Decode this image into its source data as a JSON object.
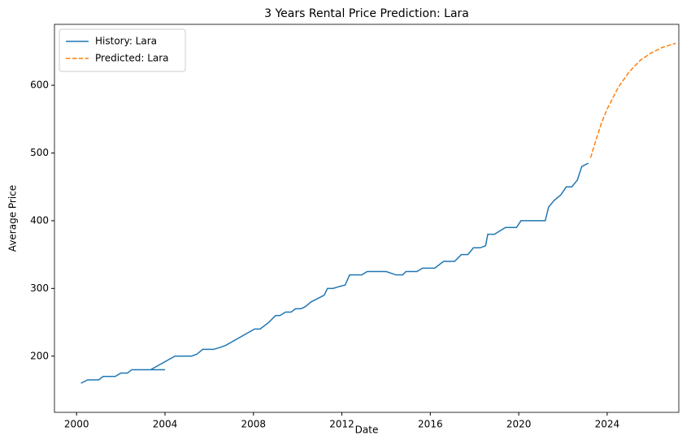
{
  "chart_data": {
    "type": "line",
    "title": "3 Years Rental Price Prediction: Lara",
    "x_label": "Date",
    "y_label": "Average Price",
    "xlim": [
      1999.0,
      2027.24
    ],
    "ylim": [
      117,
      690
    ],
    "xticks": [
      2000,
      2004,
      2008,
      2012,
      2016,
      2020,
      2024
    ],
    "yticks": [
      200,
      300,
      400,
      500,
      600
    ],
    "legend": "upper left",
    "series": [
      {
        "name": "History: Lara",
        "color": "#1f77b4",
        "dashed": false,
        "x": [
          2000.2,
          2000.5,
          2001.0,
          2001.2,
          2001.75,
          2002.0,
          2002.3,
          2002.5,
          2004.0,
          2003.35,
          2004.45,
          2005.2,
          2005.45,
          2005.7,
          2006.2,
          2006.5,
          2006.75,
          2008.05,
          2008.3,
          2008.7,
          2009.0,
          2009.2,
          2009.45,
          2009.7,
          2009.9,
          2010.15,
          2010.35,
          2010.6,
          2011.2,
          2011.35,
          2011.6,
          2011.9,
          2012.15,
          2012.35,
          2012.9,
          2013.15,
          2014.0,
          2014.45,
          2014.75,
          2014.9,
          2015.4,
          2015.65,
          2016.2,
          2016.6,
          2017.1,
          2017.4,
          2017.7,
          2017.95,
          2018.25,
          2018.5,
          2018.6,
          2018.9,
          2019.4,
          2019.9,
          2020.1,
          2021.2,
          2021.35,
          2021.6,
          2021.9,
          2022.15,
          2022.4,
          2022.65,
          2022.85,
          2023.15
        ],
        "values": [
          160,
          165,
          165,
          170,
          170,
          175,
          175,
          180,
          180,
          180,
          200,
          200,
          203,
          210,
          210,
          213,
          216,
          240,
          240,
          250,
          260,
          260,
          265,
          265,
          270,
          270,
          273,
          280,
          290,
          300,
          300,
          303,
          305,
          320,
          320,
          325,
          325,
          320,
          320,
          325,
          325,
          330,
          330,
          340,
          340,
          350,
          350,
          360,
          360,
          363,
          380,
          380,
          390,
          390,
          400,
          400,
          420,
          430,
          438,
          450,
          450,
          460,
          480,
          485
        ]
      },
      {
        "name": "Predicted: Lara",
        "color": "#ff7f0e",
        "dashed": true,
        "x": [
          2023.25,
          2023.5,
          2023.75,
          2024.0,
          2024.5,
          2025.0,
          2025.5,
          2026.0,
          2026.5,
          2027.1
        ],
        "values": [
          493,
          520,
          545,
          565,
          597,
          620,
          637,
          648,
          656,
          662
        ]
      }
    ]
  }
}
